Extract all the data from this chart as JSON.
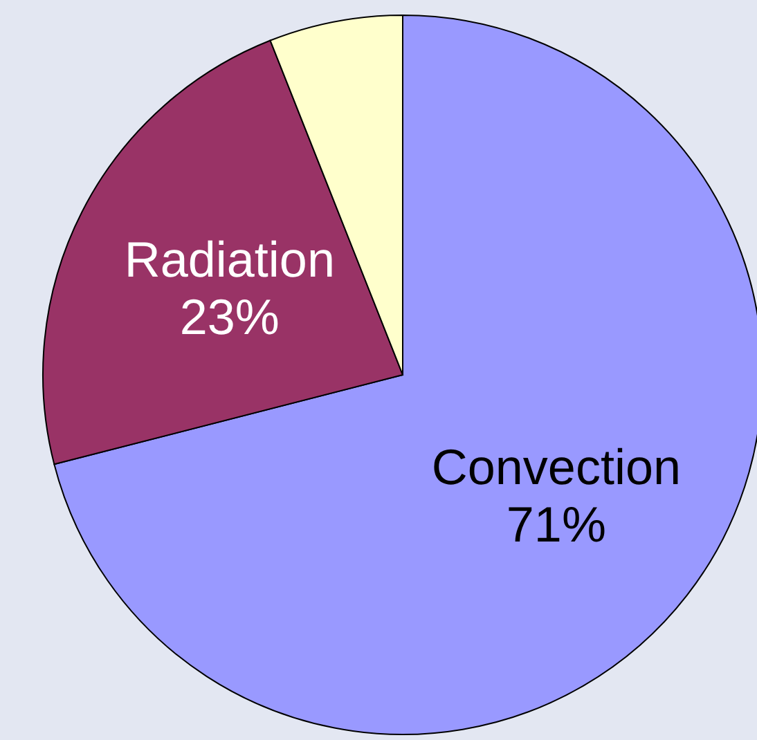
{
  "chart_data": {
    "type": "pie",
    "categories": [
      "Convection",
      "Radiation",
      null
    ],
    "values": [
      71,
      23,
      6
    ],
    "value_labels": [
      "71%",
      "23%",
      null
    ],
    "colors": [
      "#9999ff",
      "#993366",
      "#ffffcc"
    ]
  }
}
